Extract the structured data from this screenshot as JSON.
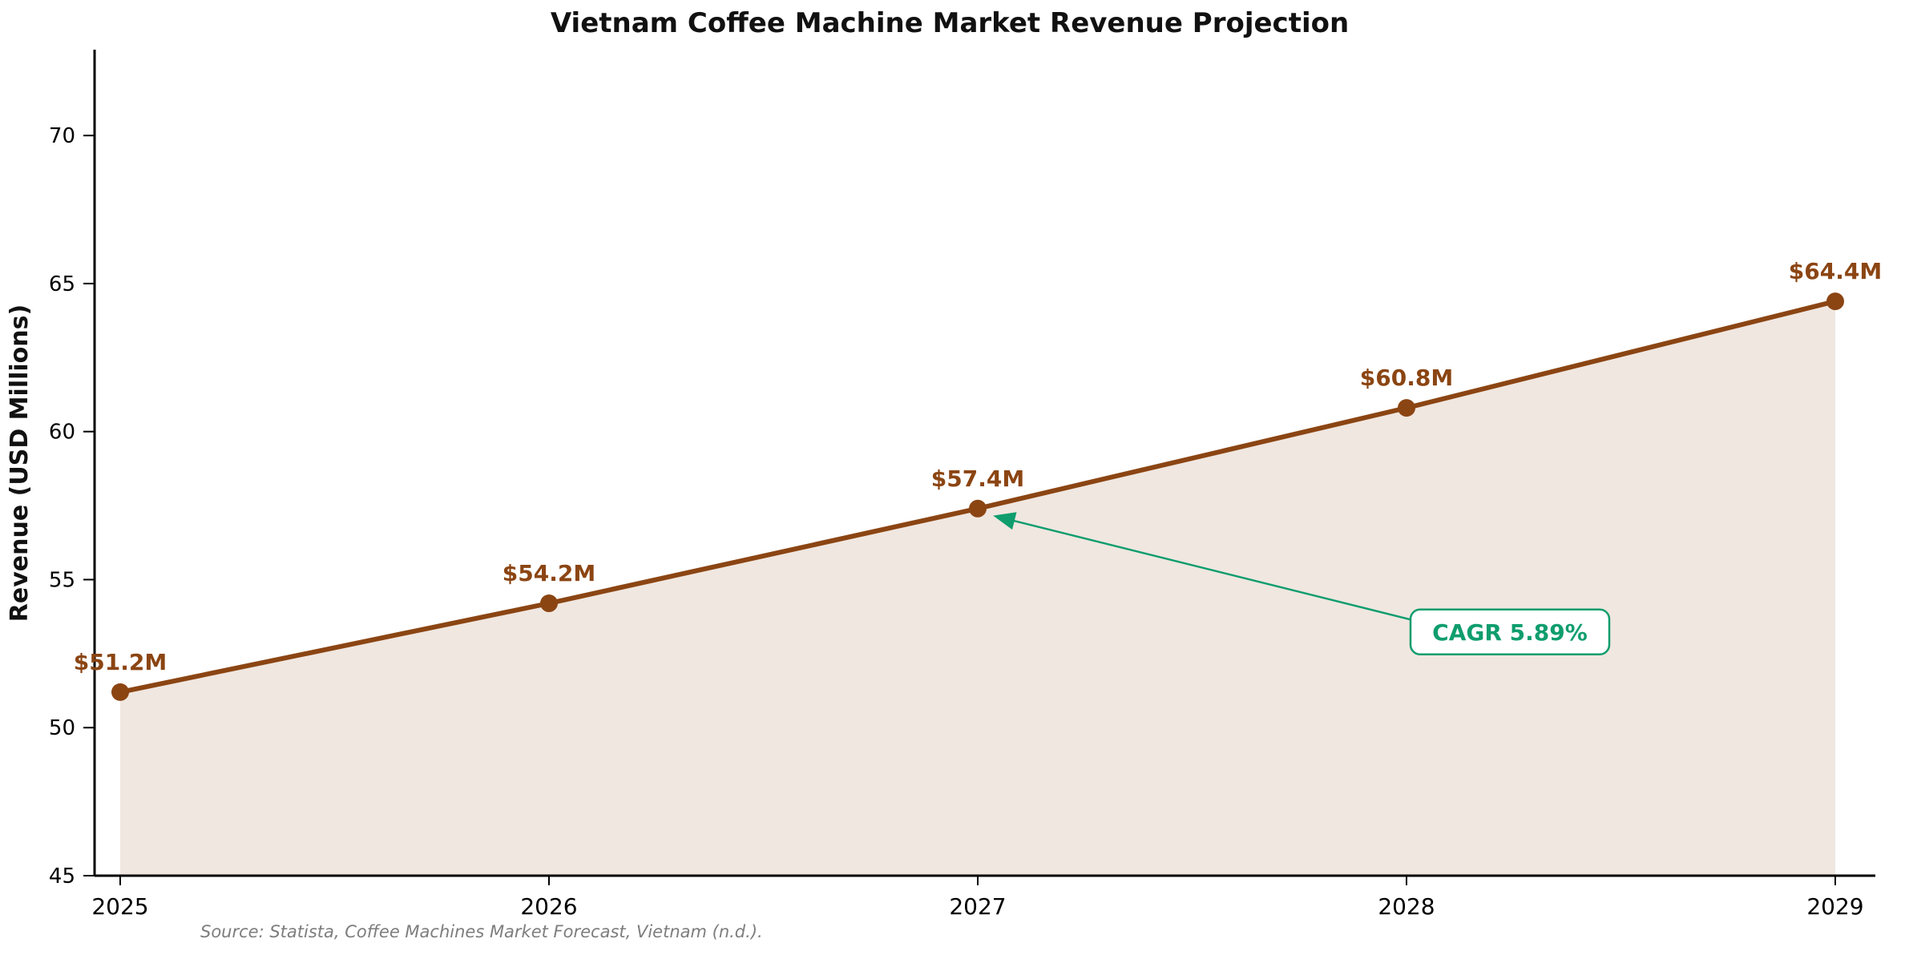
{
  "chart_data": {
    "type": "line",
    "title": "Vietnam Coffee Machine Market Revenue Projection",
    "ylabel": "Revenue (USD Millions)",
    "xlabel": "",
    "categories": [
      "2025",
      "2026",
      "2027",
      "2028",
      "2029"
    ],
    "series": [
      {
        "name": "Revenue",
        "values": [
          51.2,
          54.2,
          57.4,
          60.8,
          64.4
        ]
      }
    ],
    "point_labels": [
      "$51.2M",
      "$54.2M",
      "$57.4M",
      "$60.8M",
      "$64.4M"
    ],
    "ylim": [
      45,
      72.9
    ],
    "yticks": [
      45,
      50,
      55,
      60,
      65,
      70
    ],
    "grid": false,
    "legend": "none",
    "area_fill": true,
    "annotation": {
      "text": "CAGR 5.89%",
      "target_category": "2027",
      "target_value": 57.4
    },
    "colors": {
      "line": "#8B4513",
      "marker": "#8B4513",
      "fill": "rgba(139,69,19,0.13)",
      "annotation": "#0f9d6e",
      "axis": "#000000",
      "tick_text": "#000000",
      "source_text": "#7d7d7d"
    },
    "source_note": "Source: Statista, Coffee Machines Market Forecast, Vietnam (n.d.)."
  }
}
